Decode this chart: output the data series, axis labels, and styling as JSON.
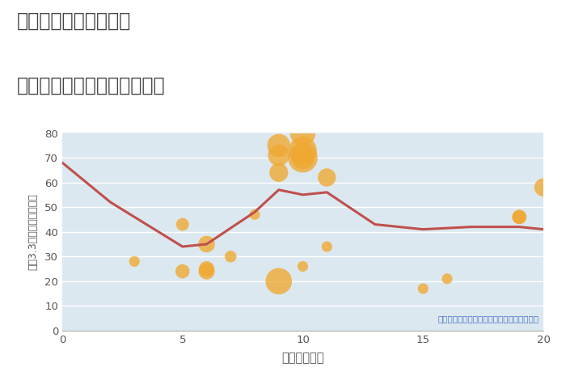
{
  "title_line1": "三重県鈴鹿市徳居町の",
  "title_line2": "駅距離別中古マンション価格",
  "xlabel": "駅距離（分）",
  "ylabel": "平（3.3㎡）単価（万円）",
  "annotation": "円の大きさは、取引のあった物件面積を示す",
  "xlim": [
    0,
    20
  ],
  "ylim": [
    0,
    80
  ],
  "xticks": [
    0,
    5,
    10,
    15,
    20
  ],
  "yticks": [
    0,
    10,
    20,
    30,
    40,
    50,
    60,
    70,
    80
  ],
  "line_x": [
    0,
    2,
    5,
    6,
    8,
    9,
    10,
    11,
    13,
    15,
    17,
    19,
    20
  ],
  "line_y": [
    68,
    52,
    34,
    35,
    48,
    57,
    55,
    56,
    43,
    41,
    42,
    42,
    41
  ],
  "line_color": "#c0504d",
  "line_width": 2.2,
  "scatter_x": [
    3,
    5,
    5,
    6,
    6,
    6,
    7,
    8,
    9,
    9,
    9,
    9,
    10,
    10,
    10,
    10,
    10,
    11,
    11,
    15,
    16,
    19,
    19,
    20
  ],
  "scatter_y": [
    28,
    43,
    24,
    35,
    25,
    24,
    30,
    47,
    64,
    75,
    71,
    20,
    80,
    73,
    70,
    70,
    26,
    62,
    34,
    17,
    21,
    46,
    46,
    58
  ],
  "scatter_sizes": [
    90,
    130,
    160,
    220,
    190,
    210,
    110,
    90,
    280,
    420,
    370,
    550,
    520,
    620,
    700,
    420,
    90,
    260,
    90,
    90,
    90,
    160,
    160,
    260
  ],
  "scatter_color": "#f0a830",
  "scatter_alpha": 0.78,
  "background_color": "#ffffff",
  "plot_bg_color": "#dce8f0",
  "grid_color": "#ffffff",
  "title_color": "#444444",
  "label_color": "#555555",
  "annotation_color": "#4472c4",
  "spine_color": "#aaaaaa"
}
